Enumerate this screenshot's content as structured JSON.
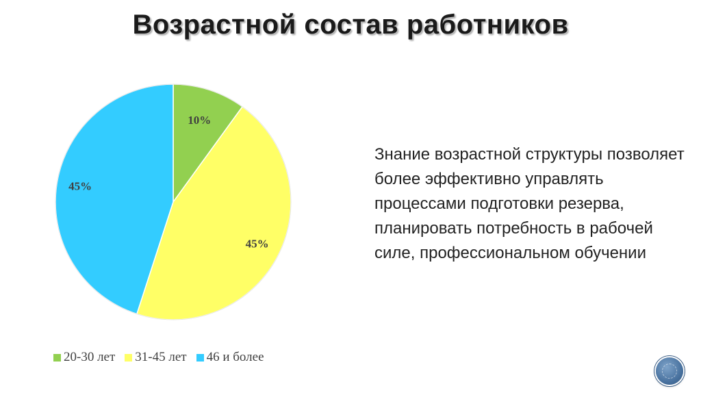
{
  "slide": {
    "title": "Возрастной состав работников",
    "body_text": "Знание возрастной структуры позволяет более эффективно управлять процессами подготовки резерва, планировать потребность в рабочей силе, профессиональном обучении"
  },
  "chart_data": {
    "type": "pie",
    "title": "",
    "categories": [
      "20-30 лет",
      "31-45 лет",
      "46 и более"
    ],
    "values": [
      10,
      45,
      45
    ],
    "data_labels": [
      "10%",
      "45%",
      "45%"
    ],
    "colors": [
      "#92d050",
      "#ffff66",
      "#33ccff"
    ],
    "legend_position": "bottom"
  },
  "legend": {
    "items": [
      {
        "label": "20-30 лет",
        "color": "#92d050"
      },
      {
        "label": "31-45 лет",
        "color": "#ffff66"
      },
      {
        "label": "46 и более",
        "color": "#33ccff"
      }
    ]
  },
  "icons": {
    "nav_button": "navigation-circle-icon"
  }
}
